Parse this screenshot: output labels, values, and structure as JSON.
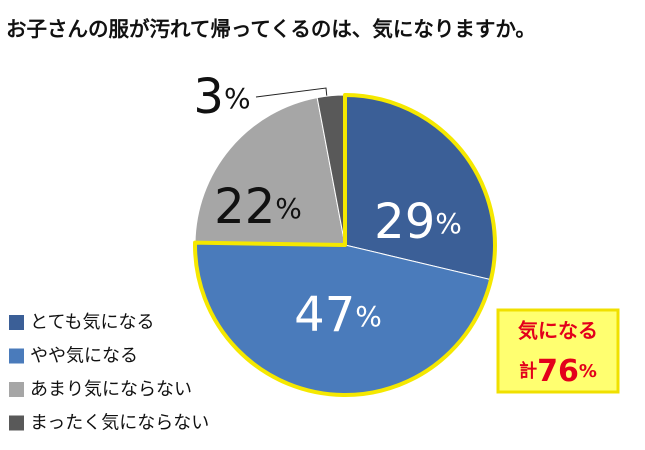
{
  "chart_data": {
    "type": "pie",
    "title": "お子さんの服が汚れて帰ってくるのは、気になりますか。",
    "categories": [
      "とても気になる",
      "やや気になる",
      "あまり気にならない",
      "まったく気にならない"
    ],
    "values": [
      29,
      47,
      22,
      3
    ],
    "value_labels": [
      "29%",
      "47%",
      "22%",
      "3%"
    ],
    "colors": [
      "#3b5f97",
      "#4a7bbb",
      "#a6a6a6",
      "#595959"
    ],
    "annotation": {
      "text": "気になる",
      "total": "計76%"
    }
  }
}
